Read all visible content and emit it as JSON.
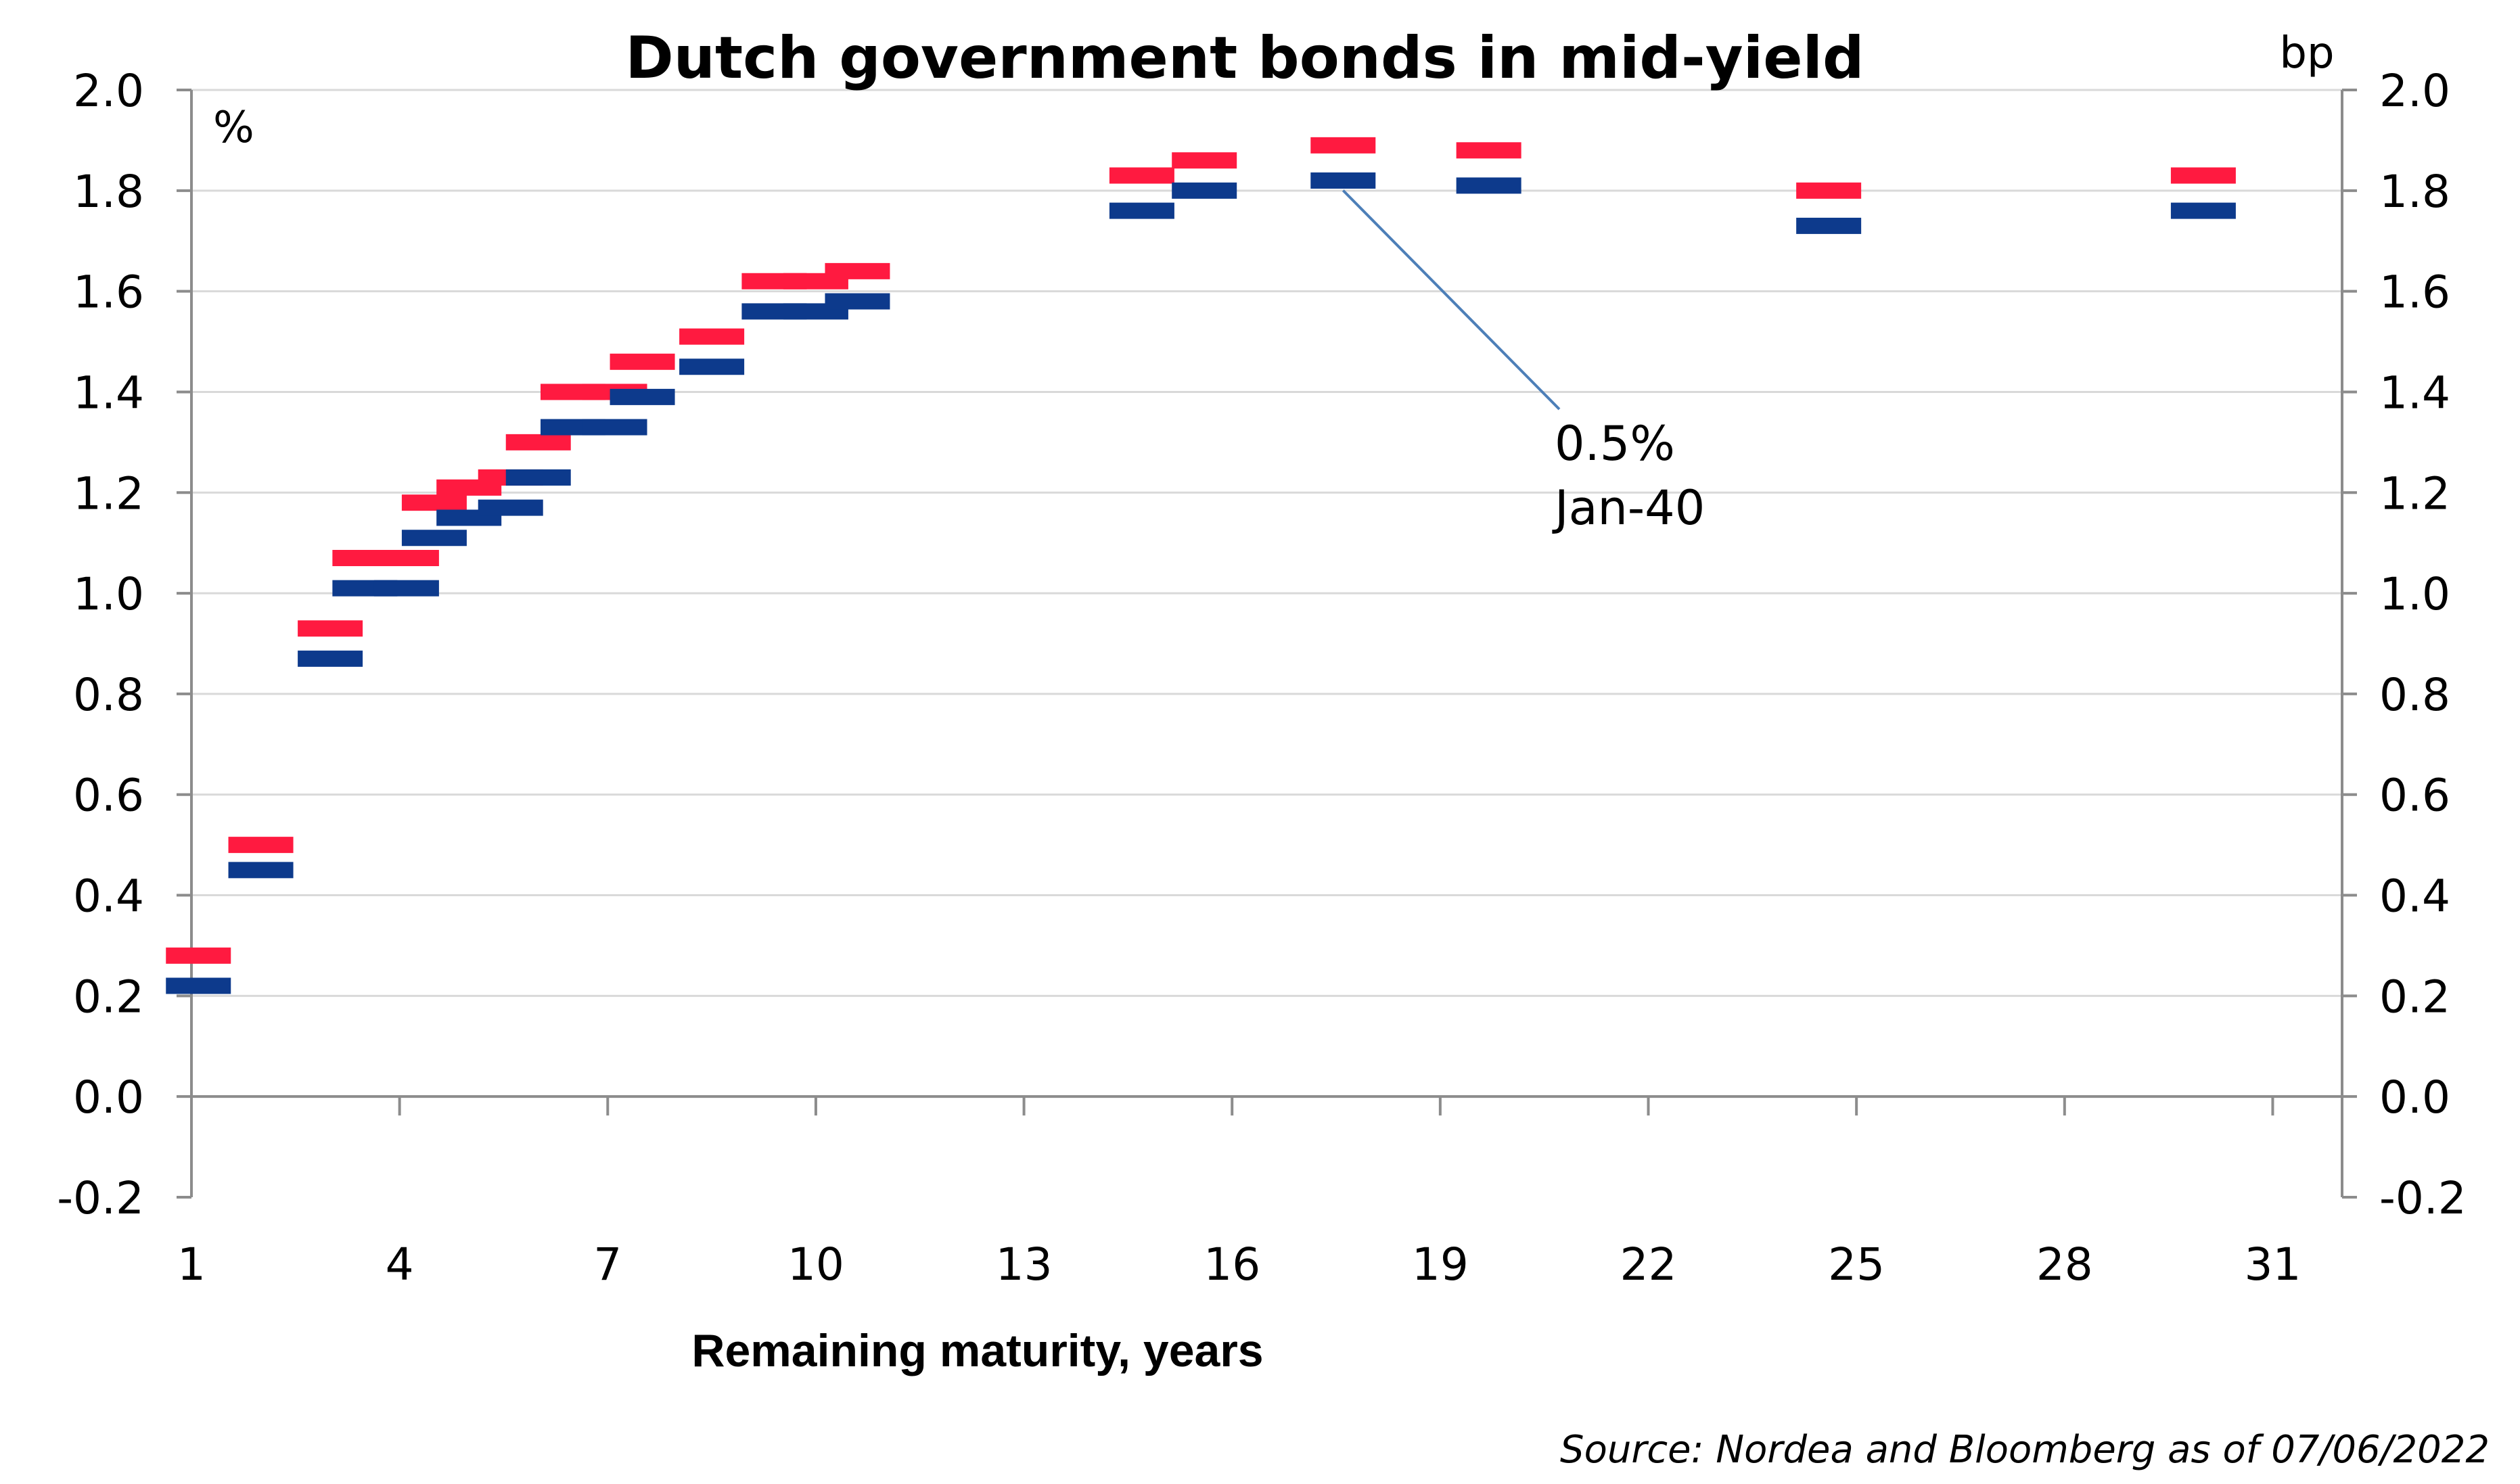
{
  "chart_data": {
    "type": "scatter",
    "title": "Dutch government bonds in mid-yield",
    "xlabel": "Remaining maturity, years",
    "ylabel_left": "%",
    "ylabel_right": "bp",
    "source": "Source: Nordea and Bloomberg as of 07/06/2022",
    "xlim": [
      1,
      32
    ],
    "xticks": [
      1,
      4,
      7,
      10,
      13,
      16,
      19,
      22,
      25,
      28,
      31
    ],
    "ylim": [
      -0.2,
      2.0
    ],
    "yticks": [
      -0.2,
      0.0,
      0.2,
      0.4,
      0.6,
      0.8,
      1.0,
      1.2,
      1.4,
      1.6,
      1.8,
      2.0
    ],
    "grid": true,
    "colors": {
      "red": "#ff1a40",
      "blue": "#0d3a8c",
      "grid": "#d9d9d9",
      "axis": "#8c8c8c",
      "annotation_line": "#4d7fb8"
    },
    "series": [
      {
        "x": [
          1.1,
          2.0,
          3.0,
          3.5,
          4.1,
          4.5,
          5.0,
          5.6,
          6.0,
          6.5,
          7.1,
          7.5,
          8.5,
          9.4,
          10.0,
          10.6,
          14.7,
          15.6,
          17.6,
          19.7,
          24.6,
          30.0
        ],
        "low": [
          0.22,
          0.45,
          0.87,
          1.01,
          1.01,
          1.11,
          1.15,
          1.17,
          1.23,
          1.33,
          1.33,
          1.39,
          1.45,
          1.56,
          1.56,
          1.58,
          1.76,
          1.8,
          1.82,
          1.81,
          1.73,
          1.76
        ],
        "high": [
          0.28,
          0.5,
          0.93,
          1.07,
          1.07,
          1.18,
          1.21,
          1.23,
          1.3,
          1.4,
          1.4,
          1.46,
          1.51,
          1.62,
          1.62,
          1.64,
          1.83,
          1.86,
          1.89,
          1.88,
          1.8,
          1.83
        ]
      }
    ],
    "annotations": [
      {
        "text_line1": "0.5%",
        "text_line2": "Jan-40",
        "x": 17.6,
        "y": 1.83
      }
    ]
  }
}
